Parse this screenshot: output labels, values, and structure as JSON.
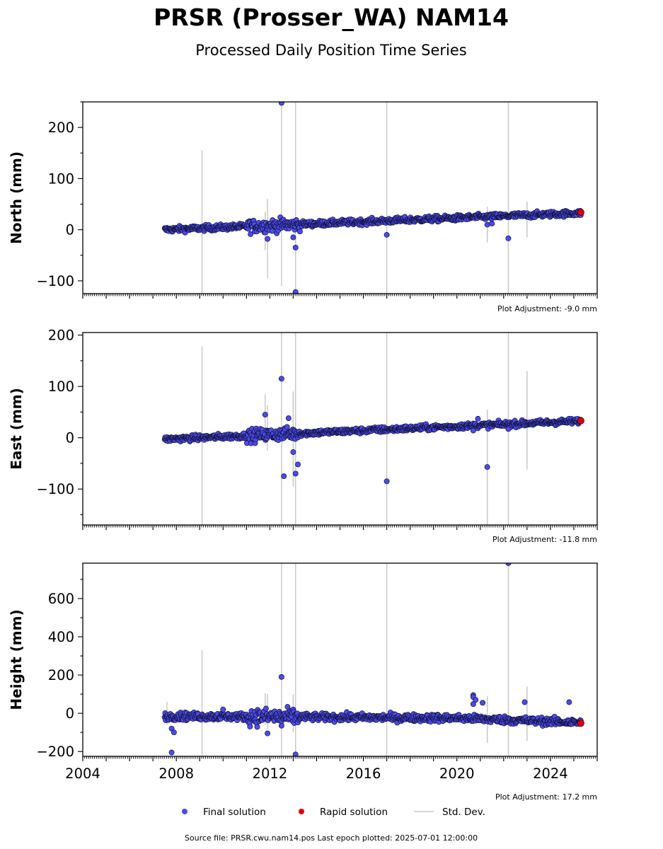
{
  "title": "PRSR (Prosser_WA) NAM14",
  "subtitle": "Processed Daily Position Time Series",
  "source_note": "Source file: PRSR.cwu.nam14.pos  Last epoch plotted: 2025-07-01 12:00:00",
  "legend": {
    "final": "Final solution",
    "rapid": "Rapid solution",
    "std": "Std. Dev."
  },
  "colors": {
    "final": "#4b4bef",
    "rapid": "#e0000f",
    "std": "#c8c8c8",
    "marker_edge": "#111133"
  },
  "x_ticks": [
    "2004",
    "2008",
    "2012",
    "2016",
    "2020",
    "2024"
  ],
  "chart_data": [
    {
      "type": "scatter",
      "ylabel": "North (mm)",
      "plot_adjustment": "Plot Adjustment: -9.0 mm",
      "xlim": [
        2004,
        2026
      ],
      "ylim": [
        -125,
        250
      ],
      "yticks": [
        "200",
        "100",
        "0",
        "−100"
      ],
      "ytick_values": [
        200,
        100,
        0,
        -100
      ],
      "trend": [
        [
          2007.5,
          0
        ],
        [
          2025.5,
          33
        ]
      ],
      "noise": 4,
      "outliers": [
        [
          2012.5,
          248
        ],
        [
          2011.9,
          -18
        ],
        [
          2013.0,
          -15
        ],
        [
          2013.1,
          -35
        ],
        [
          2013.1,
          -122
        ],
        [
          2017.0,
          -10
        ],
        [
          2021.3,
          10
        ],
        [
          2021.5,
          12
        ],
        [
          2022.2,
          -17
        ]
      ],
      "std_bars": [
        [
          2009.1,
          -125,
          155
        ],
        [
          2011.9,
          -95,
          60
        ],
        [
          2011.8,
          -40,
          35
        ],
        [
          2012.5,
          -110,
          250
        ],
        [
          2013.1,
          -125,
          250
        ],
        [
          2017.0,
          -125,
          250
        ],
        [
          2021.3,
          -25,
          45
        ],
        [
          2022.2,
          -125,
          250
        ],
        [
          2023.0,
          -15,
          55
        ]
      ],
      "rapid": [
        2025.3,
        34
      ]
    },
    {
      "type": "scatter",
      "ylabel": "East (mm)",
      "plot_adjustment": "Plot Adjustment: -11.8 mm",
      "xlim": [
        2004,
        2026
      ],
      "ylim": [
        -170,
        205
      ],
      "yticks": [
        "200",
        "100",
        "0",
        "−100"
      ],
      "ytick_values": [
        200,
        100,
        0,
        -100
      ],
      "trend": [
        [
          2007.5,
          -3
        ],
        [
          2025.5,
          33
        ]
      ],
      "noise": 4,
      "outliers": [
        [
          2012.5,
          115
        ],
        [
          2011.8,
          45
        ],
        [
          2012.8,
          38
        ],
        [
          2013.0,
          -28
        ],
        [
          2012.6,
          -75
        ],
        [
          2013.2,
          -52
        ],
        [
          2013.1,
          -70
        ],
        [
          2017.0,
          -85
        ],
        [
          2020.7,
          14
        ],
        [
          2020.9,
          37
        ],
        [
          2021.3,
          -57
        ],
        [
          2022.2,
          17
        ]
      ],
      "std_bars": [
        [
          2009.1,
          -170,
          178
        ],
        [
          2011.8,
          -10,
          85
        ],
        [
          2011.9,
          -25,
          63
        ],
        [
          2012.5,
          -170,
          205
        ],
        [
          2013.0,
          -95,
          90
        ],
        [
          2013.1,
          -170,
          205
        ],
        [
          2017.0,
          -170,
          205
        ],
        [
          2021.3,
          -170,
          55
        ],
        [
          2022.2,
          -170,
          205
        ],
        [
          2023.0,
          -62,
          130
        ]
      ],
      "rapid": [
        2025.3,
        33
      ]
    },
    {
      "type": "scatter",
      "ylabel": "Height (mm)",
      "plot_adjustment": "Plot Adjustment: 17.2 mm",
      "xlim": [
        2004,
        2026
      ],
      "ylim": [
        -225,
        785
      ],
      "yticks": [
        "600",
        "400",
        "200",
        "0",
        "−200"
      ],
      "ytick_values": [
        600,
        400,
        200,
        0,
        -200
      ],
      "trend": [
        [
          2007.5,
          -15
        ],
        [
          2020.0,
          -25
        ],
        [
          2025.5,
          -50
        ]
      ],
      "noise": 14,
      "outliers": [
        [
          2007.8,
          -80
        ],
        [
          2007.9,
          -100
        ],
        [
          2007.8,
          -205
        ],
        [
          2010.0,
          20
        ],
        [
          2011.9,
          -105
        ],
        [
          2012.5,
          190
        ],
        [
          2012.5,
          -65
        ],
        [
          2013.1,
          -215
        ],
        [
          2020.7,
          95
        ],
        [
          2020.7,
          85
        ],
        [
          2020.8,
          70
        ],
        [
          2020.7,
          48
        ],
        [
          2021.1,
          55
        ],
        [
          2022.9,
          58
        ],
        [
          2024.8,
          58
        ],
        [
          2022.2,
          785
        ]
      ],
      "std_bars": [
        [
          2007.6,
          -60,
          60
        ],
        [
          2009.1,
          -225,
          330
        ],
        [
          2011.8,
          -60,
          105
        ],
        [
          2011.9,
          -80,
          100
        ],
        [
          2012.5,
          -225,
          785
        ],
        [
          2013.0,
          -100,
          100
        ],
        [
          2013.1,
          -225,
          785
        ],
        [
          2017.0,
          -225,
          785
        ],
        [
          2021.3,
          -155,
          90
        ],
        [
          2022.2,
          -225,
          785
        ],
        [
          2023.0,
          -145,
          140
        ]
      ],
      "rapid": [
        2025.3,
        -52
      ]
    }
  ]
}
